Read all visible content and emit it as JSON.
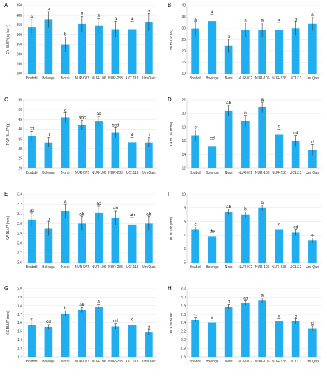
{
  "chart_data": [
    {
      "type": "bar",
      "panel_letter": "A",
      "ylabel": "GY BLUP (kg ha⁻¹)",
      "ylim": [
        100,
        450
      ],
      "yticks": [
        100,
        150,
        200,
        250,
        300,
        350,
        400,
        450
      ],
      "categories": [
        "Boabdil",
        "Bolenga",
        "Norsi",
        "NUR-072",
        "NUR-106",
        "NUR-238",
        "UC1113",
        "Um Qais"
      ],
      "values": [
        340,
        378,
        250,
        355,
        345,
        328,
        328,
        365
      ],
      "errors": [
        40,
        40,
        40,
        40,
        40,
        40,
        40,
        45
      ],
      "labels": [
        "a",
        "a",
        "b",
        "a",
        "a",
        "a",
        "a",
        "a"
      ],
      "grid": true
    },
    {
      "type": "bar",
      "panel_letter": "B",
      "ylabel": "HI BLUP (%)",
      "ylim": [
        10,
        40
      ],
      "yticks": [
        10,
        15,
        20,
        25,
        30,
        35,
        40
      ],
      "categories": [
        "Boabdil",
        "Bolenga",
        "Norsi",
        "NUR-072",
        "NUR-106",
        "NUR-238",
        "UC1113",
        "Um Qais"
      ],
      "values": [
        29.8,
        33.0,
        22.2,
        29.3,
        29.2,
        29.4,
        29.9,
        31.9
      ],
      "errors": [
        3,
        3,
        3,
        3,
        3,
        3,
        3,
        3
      ],
      "labels": [
        "a",
        "a",
        "b",
        "a",
        "a",
        "a",
        "a",
        "a"
      ],
      "grid": true
    },
    {
      "type": "bar",
      "panel_letter": "C",
      "ylabel": "TKW BLUP (g)",
      "ylim": [
        20,
        55
      ],
      "yticks": [
        20,
        25,
        30,
        35,
        40,
        45,
        50,
        55
      ],
      "categories": [
        "Boabdil",
        "Bolenga",
        "Norsi",
        "NUR-072",
        "NUR-106",
        "NUR-238",
        "UC1113",
        "Um Qais"
      ],
      "values": [
        36.5,
        33.2,
        46.0,
        42.0,
        44.0,
        38.2,
        33.3,
        33.2
      ],
      "errors": [
        2.5,
        2.5,
        2.5,
        2.5,
        2.5,
        2.5,
        2.5,
        2.5
      ],
      "labels": [
        "cd",
        "d",
        "a",
        "abc",
        "ab",
        "bcd",
        "d",
        "d"
      ],
      "grid": true
    },
    {
      "type": "bar",
      "panel_letter": "D",
      "ylabel": "KA BLUP (mm²)",
      "ylim": [
        12,
        22
      ],
      "yticks": [
        12,
        14,
        16,
        18,
        20,
        22
      ],
      "categories": [
        "Boabdil",
        "Bolenga",
        "Norsi",
        "NUR-072",
        "NUR-106",
        "NUR-238",
        "UC1113",
        "Um Qais"
      ],
      "values": [
        16.8,
        15.2,
        20.4,
        18.9,
        20.9,
        16.9,
        16.0,
        14.7
      ],
      "errors": [
        0.8,
        0.8,
        0.8,
        0.8,
        0.8,
        0.8,
        0.8,
        0.8
      ],
      "labels": [
        "c",
        "cd",
        "ab",
        "b",
        "a",
        "c",
        "cd",
        "d"
      ],
      "grid": true
    },
    {
      "type": "bar",
      "panel_letter": "E",
      "ylabel": "KW BLUP (mm)",
      "ylim": [
        2.6,
        3.3
      ],
      "yticks": [
        2.6,
        2.7,
        2.8,
        2.9,
        3.0,
        3.1,
        3.2,
        3.3
      ],
      "tick_decimals": 1,
      "categories": [
        "Boabdil",
        "Bolenga",
        "Norsi",
        "NUR-072",
        "NUR-106",
        "NUR-238",
        "UC1113",
        "Um Qais"
      ],
      "values": [
        3.04,
        2.95,
        3.13,
        3.0,
        3.11,
        3.06,
        2.99,
        3.0
      ],
      "errors": [
        0.07,
        0.07,
        0.07,
        0.07,
        0.07,
        0.07,
        0.07,
        0.07
      ],
      "labels": [
        "ab",
        "b",
        "a",
        "ab",
        "ab",
        "ab",
        "ab",
        "ab"
      ],
      "grid": true
    },
    {
      "type": "bar",
      "panel_letter": "F",
      "ylabel": "KL BLUP (mm)",
      "ylim": [
        5,
        10
      ],
      "yticks": [
        5,
        6,
        7,
        8,
        9,
        10
      ],
      "categories": [
        "Boabdil",
        "Bolenga",
        "Norsi",
        "NUR-072",
        "NUR-106",
        "NUR-238",
        "UC1113",
        "Um Qais"
      ],
      "values": [
        7.4,
        6.9,
        8.7,
        8.5,
        9.0,
        7.4,
        7.2,
        6.6
      ],
      "errors": [
        0.2,
        0.2,
        0.2,
        0.2,
        0.2,
        0.2,
        0.2,
        0.2
      ],
      "labels": [
        "c",
        "de",
        "ab",
        "b",
        "a",
        "c",
        "cd",
        "e"
      ],
      "grid": true
    },
    {
      "type": "bar",
      "panel_letter": "G",
      "ylabel": "KC BLUP (mm)",
      "ylim": [
        1.2,
        2.0
      ],
      "yticks": [
        1.2,
        1.3,
        1.4,
        1.5,
        1.6,
        1.7,
        1.8,
        1.9,
        2.0
      ],
      "tick_decimals": 1,
      "categories": [
        "Boabdil",
        "Bolenga",
        "Norsi",
        "NUR-072",
        "NUR-106",
        "NUR-238",
        "UC1113",
        "Um Qais"
      ],
      "values": [
        1.58,
        1.55,
        1.71,
        1.75,
        1.79,
        1.56,
        1.58,
        1.49
      ],
      "errors": [
        0.03,
        0.03,
        0.03,
        0.03,
        0.03,
        0.03,
        0.03,
        0.03
      ],
      "labels": [
        "c",
        "cd",
        "b",
        "ab",
        "a",
        "cd",
        "c",
        "d"
      ],
      "grid": true
    },
    {
      "type": "bar",
      "panel_letter": "H",
      "ylabel": "KL:KW BLUP",
      "ylim": [
        1.6,
        3.2
      ],
      "yticks": [
        1.6,
        1.8,
        2.0,
        2.2,
        2.4,
        2.6,
        2.8,
        3.0,
        3.2
      ],
      "tick_decimals": 1,
      "categories": [
        "Boabdil",
        "Bolenga",
        "Norsi",
        "NUR-072",
        "NUR-106",
        "NUR-238",
        "UC1113",
        "Um Qais"
      ],
      "values": [
        2.47,
        2.4,
        2.78,
        2.86,
        2.92,
        2.44,
        2.44,
        2.27
      ],
      "errors": [
        0.06,
        0.06,
        0.06,
        0.06,
        0.06,
        0.06,
        0.06,
        0.06
      ],
      "labels": [
        "c",
        "c",
        "b",
        "ab",
        "a",
        "c",
        "c",
        "d"
      ],
      "grid": true
    }
  ]
}
